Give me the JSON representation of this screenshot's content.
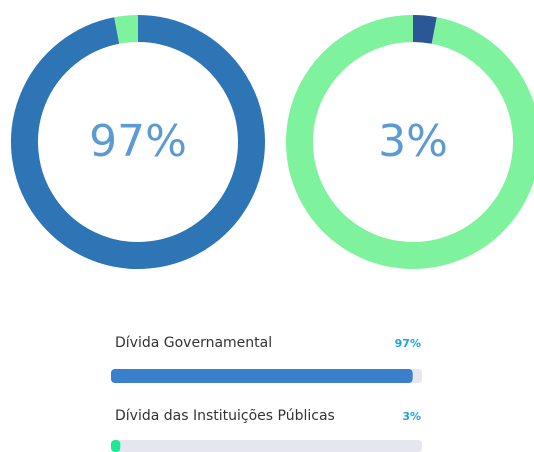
{
  "chart_data": [
    {
      "type": "donut",
      "values": [
        97,
        3
      ],
      "value_label": "97%",
      "colors": [
        "#2e75b6",
        "#7ef29d"
      ]
    },
    {
      "type": "donut",
      "values": [
        3,
        97
      ],
      "value_label": "3%",
      "colors": [
        "#2b5797",
        "#7ef29d"
      ]
    },
    {
      "type": "bar",
      "categories": [
        "Dívida Governamental",
        "Dívida das Instituições Públicas"
      ],
      "values": [
        97,
        3
      ],
      "value_labels": [
        "97%",
        "3%"
      ],
      "colors": [
        "#3a7fcc",
        "#1de995"
      ],
      "xlim": [
        0,
        100
      ]
    }
  ]
}
